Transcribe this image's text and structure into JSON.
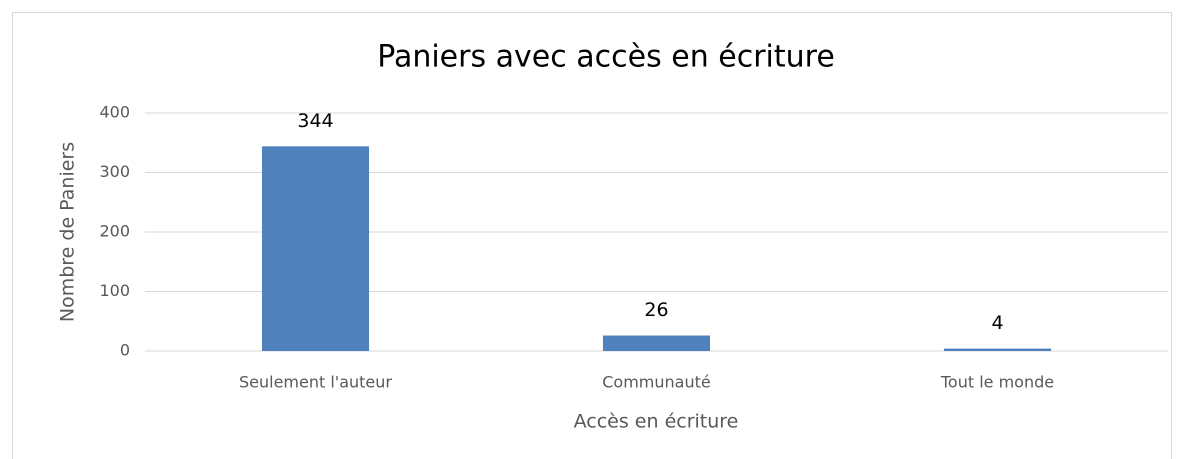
{
  "chart_data": {
    "type": "bar",
    "title": "Paniers avec accès en écriture",
    "x_label": "Accès en écriture",
    "y_label": "Nombre de Paniers",
    "categories": [
      "Seulement l'auteur",
      "Communauté",
      "Tout le monde"
    ],
    "values": [
      344,
      26,
      4
    ],
    "color": "#4f81bd",
    "ylim": [
      0,
      400
    ],
    "yticks": [
      0,
      100,
      200,
      300,
      400
    ],
    "grid": true
  }
}
